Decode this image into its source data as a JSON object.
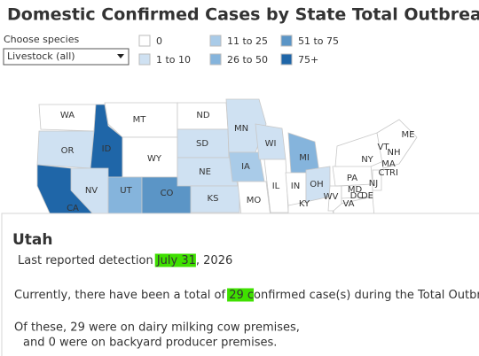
{
  "header": {
    "title": "Domestic Confirmed Cases by State Total Outbreak"
  },
  "filter": {
    "label": "Choose species",
    "selected": "Livestock (all)"
  },
  "legend": [
    {
      "label": "0",
      "color": "#ffffff"
    },
    {
      "label": "1 to 10",
      "color": "#cfe1f2"
    },
    {
      "label": "11 to 25",
      "color": "#a9cbe8"
    },
    {
      "label": "26 to 50",
      "color": "#85b4dc"
    },
    {
      "label": "51 to 75",
      "color": "#5b95c6"
    },
    {
      "label": "75+",
      "color": "#1f66a8"
    }
  ],
  "map": {
    "states": [
      "WA",
      "OR",
      "ID",
      "MT",
      "WY",
      "NV",
      "CA",
      "UT",
      "CO",
      "ND",
      "SD",
      "NE",
      "KS",
      "MN",
      "IA",
      "MO",
      "WI",
      "IL",
      "MI",
      "IN",
      "OH",
      "KY",
      "WV",
      "VA",
      "PA",
      "MD",
      "DE",
      "DC",
      "NY",
      "NJ",
      "VT",
      "NH",
      "ME",
      "MA",
      "CT",
      "RI"
    ]
  },
  "tooltip": {
    "state": "Utah",
    "detection_prefix": "Last reported detection",
    "detection_date": " July 31",
    "detection_suffix": ", 2026",
    "total_prefix": "Currently, there have been a total of",
    "total_highlight": " 29 c",
    "total_suffix": "onfirmed case(s) during the Total Outbreak.",
    "dairy": "Of these, 29 were on dairy milking cow premises,",
    "backyard": "and 0 were on backyard producer premises."
  }
}
